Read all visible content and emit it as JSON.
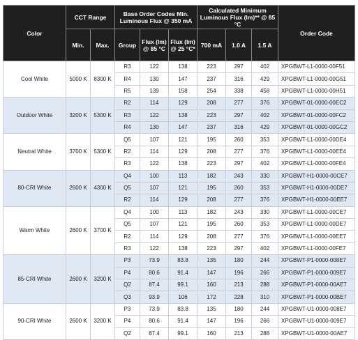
{
  "headers": {
    "color": "Color",
    "cct_range": "CCT Range",
    "cct_min": "Min.",
    "cct_max": "Max.",
    "base_order": "Base Order Codes Min. Luminous Flux @ 350 mA",
    "group": "Group",
    "flux85": "Flux (lm) @ 85 °C",
    "flux25": "Flux (lm) @ 25 °C*",
    "calc_min": "Calculated Minimum Luminous Flux (lm)** @ 85 °C",
    "ma700": "700 mA",
    "a10": "1.0 A",
    "a15": "1.5 A",
    "order_code": "Order Code"
  },
  "groups": [
    {
      "color": "Cool White",
      "min": "5000 K",
      "max": "8300 K",
      "rows": [
        {
          "group": "R3",
          "f85": "122",
          "f25": "138",
          "ma700": "223",
          "a10": "297",
          "a15": "402",
          "code": "XPGBWT-L1-0000-00F51"
        },
        {
          "group": "R4",
          "f85": "130",
          "f25": "147",
          "ma700": "237",
          "a10": "316",
          "a15": "429",
          "code": "XPGBWT-L1-0000-00G51"
        },
        {
          "group": "R5",
          "f85": "139",
          "f25": "158",
          "ma700": "254",
          "a10": "338",
          "a15": "458",
          "code": "XPGBWT-L1-0000-00H51"
        }
      ]
    },
    {
      "color": "Outdoor White",
      "min": "3200 K",
      "max": "5300 K",
      "rows": [
        {
          "group": "R2",
          "f85": "114",
          "f25": "129",
          "ma700": "208",
          "a10": "277",
          "a15": "376",
          "code": "XPGBWT-01-0000-00EC2"
        },
        {
          "group": "R3",
          "f85": "122",
          "f25": "138",
          "ma700": "223",
          "a10": "297",
          "a15": "402",
          "code": "XPGBWT-01-0000-00FC2"
        },
        {
          "group": "R4",
          "f85": "130",
          "f25": "147",
          "ma700": "237",
          "a10": "316",
          "a15": "429",
          "code": "XPGBWT-01-0000-00GC2"
        }
      ]
    },
    {
      "color": "Neutral White",
      "min": "3700 K",
      "max": "5300 K",
      "rows": [
        {
          "group": "Q5",
          "f85": "107",
          "f25": "121",
          "ma700": "195",
          "a10": "260",
          "a15": "353",
          "code": "XPGBWT-L1-0000-00DE4"
        },
        {
          "group": "R2",
          "f85": "114",
          "f25": "129",
          "ma700": "208",
          "a10": "277",
          "a15": "376",
          "code": "XPGBWT-L1-0000-00EE4"
        },
        {
          "group": "R3",
          "f85": "122",
          "f25": "138",
          "ma700": "223",
          "a10": "297",
          "a15": "402",
          "code": "XPGBWT-L1-0000-00FE4"
        }
      ]
    },
    {
      "color": "80-CRI White",
      "min": "2600 K",
      "max": "4300 K",
      "rows": [
        {
          "group": "Q4",
          "f85": "100",
          "f25": "113",
          "ma700": "182",
          "a10": "243",
          "a15": "330",
          "code": "XPGBWT-H1-0000-00CE7"
        },
        {
          "group": "Q5",
          "f85": "107",
          "f25": "121",
          "ma700": "195",
          "a10": "260",
          "a15": "353",
          "code": "XPGBWT-H1-0000-00DE7"
        },
        {
          "group": "R2",
          "f85": "114",
          "f25": "129",
          "ma700": "208",
          "a10": "277",
          "a15": "376",
          "code": "XPGBWT-H1-0000-00EE7"
        }
      ]
    },
    {
      "color": "Warm White",
      "min": "2600 K",
      "max": "3700 K",
      "rows": [
        {
          "group": "Q4",
          "f85": "100",
          "f25": "113",
          "ma700": "182",
          "a10": "243",
          "a15": "330",
          "code": "XPGBWT-L1-0000-00CE7"
        },
        {
          "group": "Q5",
          "f85": "107",
          "f25": "121",
          "ma700": "195",
          "a10": "260",
          "a15": "353",
          "code": "XPGBWT-L1-0000-00DE7"
        },
        {
          "group": "R2",
          "f85": "114",
          "f25": "129",
          "ma700": "208",
          "a10": "277",
          "a15": "376",
          "code": "XPGBWT-L1-0000-00EE7"
        },
        {
          "group": "R3",
          "f85": "122",
          "f25": "138",
          "ma700": "223",
          "a10": "297",
          "a15": "402",
          "code": "XPGBWT-L1-0000-00FE7"
        }
      ]
    },
    {
      "color": "85-CRI White",
      "min": "2600 K",
      "max": "3200 K",
      "rows": [
        {
          "group": "P3",
          "f85": "73.9",
          "f25": "83.8",
          "ma700": "135",
          "a10": "180",
          "a15": "244",
          "code": "XPGBWT-P1-0000-008E7"
        },
        {
          "group": "P4",
          "f85": "80.6",
          "f25": "91.4",
          "ma700": "147",
          "a10": "196",
          "a15": "266",
          "code": "XPGBWT-P1-0000-009E7"
        },
        {
          "group": "Q2",
          "f85": "87.4",
          "f25": "99.1",
          "ma700": "160",
          "a10": "213",
          "a15": "288",
          "code": "XPGBWT-P1-0000-00AE7"
        },
        {
          "group": "Q3",
          "f85": "93.9",
          "f25": "106",
          "ma700": "172",
          "a10": "228",
          "a15": "310",
          "code": "XPGBWT-P1-0000-00BE7"
        }
      ]
    },
    {
      "color": "90-CRI White",
      "min": "2600 K",
      "max": "3200 K",
      "rows": [
        {
          "group": "P3",
          "f85": "73.9",
          "f25": "83.8",
          "ma700": "135",
          "a10": "180",
          "a15": "244",
          "code": "XPGBWT-U1-0000-008E7"
        },
        {
          "group": "P4",
          "f85": "80.6",
          "f25": "91.4",
          "ma700": "147",
          "a10": "196",
          "a15": "266",
          "code": "XPGBWT-U1-0000-009E7"
        },
        {
          "group": "Q2",
          "f85": "87.4",
          "f25": "99.1",
          "ma700": "160",
          "a10": "213",
          "a15": "288",
          "code": "XPGBWT-U1-0000-00AE7"
        }
      ]
    }
  ]
}
